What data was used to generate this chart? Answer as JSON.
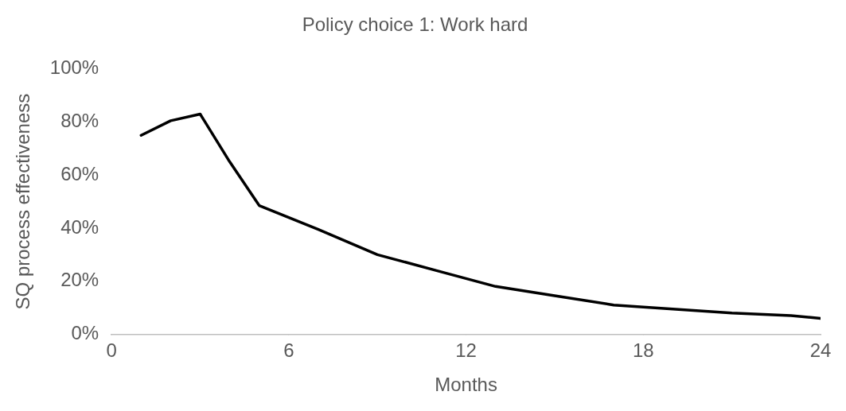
{
  "chart_data": {
    "type": "line",
    "title": "Policy choice 1: Work hard",
    "xlabel": "Months",
    "ylabel": "SQ process effectiveness",
    "x": [
      1,
      2,
      3,
      4,
      5,
      7,
      9,
      11,
      13,
      15,
      17,
      19,
      21,
      23,
      24
    ],
    "series": [
      {
        "color": "#000000",
        "values": [
          75,
          80.5,
          83,
          65,
          48.5,
          39.5,
          30,
          24,
          18,
          14.5,
          11,
          9.5,
          8,
          7,
          6
        ]
      }
    ],
    "xlim": [
      0,
      24
    ],
    "xticks": [
      0,
      6,
      12,
      18,
      24
    ],
    "ylim": [
      0,
      100
    ],
    "yticks": [
      {
        "value": 0,
        "label": "0%"
      },
      {
        "value": 20,
        "label": "20%"
      },
      {
        "value": 40,
        "label": "40%"
      },
      {
        "value": 60,
        "label": "60%"
      },
      {
        "value": 80,
        "label": "80%"
      },
      {
        "value": 100,
        "label": "100%"
      }
    ],
    "grid": false,
    "legend": false,
    "marker": "none",
    "line_style": "solid"
  }
}
